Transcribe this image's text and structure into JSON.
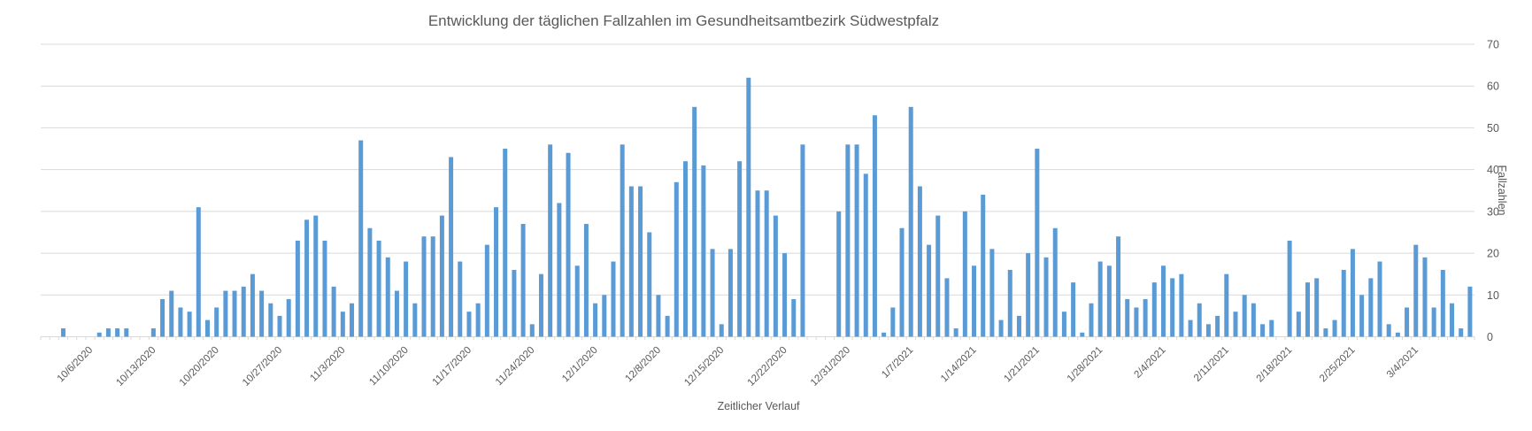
{
  "chart": {
    "title": "Entwicklung der täglichen Fallzahlen im Gesundheitsamtbezirk Südwestpfalz",
    "x_axis_title": "Zeitlicher Verlauf",
    "y_axis_title": "Fallzahlen"
  },
  "chart_data": {
    "type": "bar",
    "title": "Entwicklung der täglichen Fallzahlen im Gesundheitsamtbezirk Südwestpfalz",
    "xlabel": "Zeitlicher Verlauf",
    "ylabel": "Fallzahlen",
    "ylim": [
      0,
      70
    ],
    "y_ticks": [
      0,
      10,
      20,
      30,
      40,
      50,
      60,
      70
    ],
    "y_axis_side": "right",
    "grid": true,
    "legend": "none",
    "bar_color": "#5B9BD5",
    "gridline_color": "#D9D9D9",
    "text_color": "#595959",
    "x_tick_labels": [
      "10/6/2020",
      "10/13/2020",
      "10/20/2020",
      "10/27/2020",
      "11/3/2020",
      "11/10/2020",
      "11/17/2020",
      "11/24/2020",
      "12/1/2020",
      "12/8/2020",
      "12/15/2020",
      "12/22/2020",
      "12/31/2020",
      "1/7/2021",
      "1/14/2021",
      "1/21/2021",
      "1/28/2021",
      "2/4/2021",
      "2/11/2021",
      "2/18/2021",
      "2/25/2021",
      "3/4/2021"
    ],
    "x_tick_start_index": 5,
    "x_tick_step": 7,
    "values": [
      0,
      0,
      2,
      0,
      0,
      0,
      1,
      2,
      2,
      2,
      0,
      0,
      2,
      9,
      11,
      7,
      6,
      31,
      4,
      7,
      11,
      11,
      12,
      15,
      11,
      8,
      5,
      9,
      23,
      28,
      29,
      23,
      12,
      6,
      8,
      47,
      26,
      23,
      19,
      11,
      18,
      8,
      24,
      24,
      29,
      43,
      18,
      6,
      8,
      22,
      31,
      45,
      16,
      27,
      3,
      15,
      46,
      32,
      44,
      17,
      27,
      8,
      10,
      18,
      46,
      36,
      36,
      25,
      10,
      5,
      37,
      42,
      55,
      41,
      21,
      3,
      21,
      42,
      62,
      35,
      35,
      29,
      20,
      9,
      46,
      0,
      0,
      0,
      30,
      46,
      46,
      39,
      53,
      1,
      7,
      26,
      55,
      36,
      22,
      29,
      14,
      2,
      30,
      17,
      34,
      21,
      4,
      16,
      5,
      20,
      45,
      19,
      26,
      6,
      13,
      1,
      8,
      18,
      17,
      24,
      9,
      7,
      9,
      13,
      17,
      14,
      15,
      4,
      8,
      3,
      5,
      15,
      6,
      10,
      8,
      3,
      4,
      0,
      23,
      6,
      13,
      14,
      2,
      4,
      16,
      21,
      10,
      14,
      18,
      3,
      1,
      7,
      22,
      19,
      7,
      16,
      8,
      2,
      12
    ]
  }
}
